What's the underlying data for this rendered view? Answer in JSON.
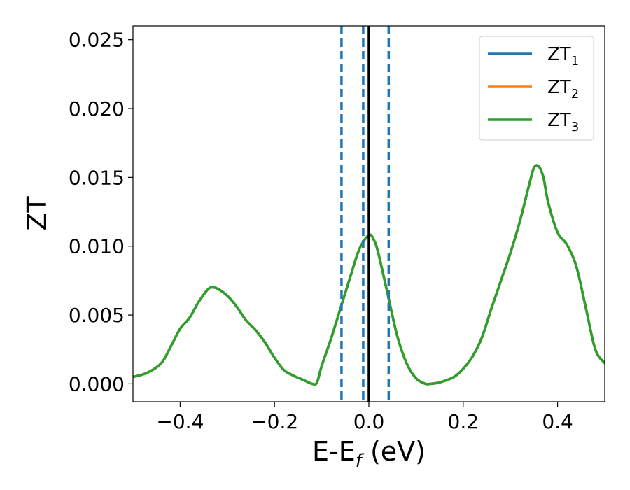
{
  "chart_data": {
    "type": "line",
    "title": "",
    "xlabel": "E-E",
    "xlabel_sub": "f",
    "xlabel_unit": " (eV)",
    "ylabel": "ZT",
    "xlim": [
      -0.5,
      0.5
    ],
    "ylim": [
      -0.0013,
      0.026
    ],
    "x_ticks": [
      -0.4,
      -0.2,
      0.0,
      0.2,
      0.4
    ],
    "x_tick_labels": [
      "−0.4",
      "−0.2",
      "0.0",
      "0.2",
      "0.4"
    ],
    "y_ticks": [
      0.0,
      0.005,
      0.01,
      0.015,
      0.02,
      0.025
    ],
    "y_tick_labels": [
      "0.000",
      "0.005",
      "0.010",
      "0.015",
      "0.020",
      "0.025"
    ],
    "grid": false,
    "legend": {
      "placement": "top-right",
      "entries": [
        {
          "base": "ZT",
          "sub": "1",
          "color": "#1f77b4"
        },
        {
          "base": "ZT",
          "sub": "2",
          "color": "#ff7f0e"
        },
        {
          "base": "ZT",
          "sub": "3",
          "color": "#2ca02c"
        }
      ]
    },
    "x": [
      -0.5,
      -0.47,
      -0.44,
      -0.42,
      -0.4,
      -0.38,
      -0.36,
      -0.34,
      -0.33,
      -0.32,
      -0.3,
      -0.28,
      -0.26,
      -0.24,
      -0.22,
      -0.2,
      -0.18,
      -0.16,
      -0.14,
      -0.12,
      -0.11,
      -0.1,
      -0.08,
      -0.06,
      -0.04,
      -0.02,
      0.0,
      0.01,
      0.02,
      0.04,
      0.06,
      0.08,
      0.1,
      0.12,
      0.13,
      0.15,
      0.18,
      0.2,
      0.22,
      0.24,
      0.26,
      0.28,
      0.3,
      0.32,
      0.34,
      0.35,
      0.36,
      0.37,
      0.38,
      0.4,
      0.42,
      0.44,
      0.46,
      0.48,
      0.5
    ],
    "series": [
      {
        "name": "ZT1",
        "color": "#1f77b4",
        "values": [
          0.0005,
          0.0008,
          0.0015,
          0.0027,
          0.004,
          0.0048,
          0.006,
          0.0069,
          0.007,
          0.0069,
          0.0064,
          0.0056,
          0.0046,
          0.0039,
          0.003,
          0.0019,
          0.001,
          0.0006,
          0.0003,
          0.0,
          0.0001,
          0.0013,
          0.0033,
          0.0055,
          0.0077,
          0.0098,
          0.0108,
          0.0105,
          0.0095,
          0.0065,
          0.0035,
          0.0015,
          0.0004,
          0.0,
          0.0,
          0.0001,
          0.0005,
          0.0011,
          0.002,
          0.0034,
          0.0055,
          0.0075,
          0.0095,
          0.0118,
          0.0145,
          0.0157,
          0.0158,
          0.015,
          0.0132,
          0.011,
          0.0101,
          0.0085,
          0.0055,
          0.0025,
          0.0015
        ]
      },
      {
        "name": "ZT2",
        "color": "#ff7f0e",
        "values": [
          0.0005,
          0.0008,
          0.0015,
          0.0027,
          0.004,
          0.0048,
          0.006,
          0.0069,
          0.007,
          0.0069,
          0.0064,
          0.0056,
          0.0046,
          0.0039,
          0.003,
          0.0019,
          0.001,
          0.0006,
          0.0003,
          0.0,
          0.0001,
          0.0013,
          0.0033,
          0.0055,
          0.0077,
          0.0098,
          0.0108,
          0.0105,
          0.0095,
          0.0065,
          0.0035,
          0.0015,
          0.0004,
          0.0,
          0.0,
          0.0001,
          0.0005,
          0.0011,
          0.002,
          0.0034,
          0.0055,
          0.0075,
          0.0095,
          0.0118,
          0.0145,
          0.0157,
          0.0158,
          0.015,
          0.0132,
          0.011,
          0.0101,
          0.0085,
          0.0055,
          0.0025,
          0.0015
        ]
      },
      {
        "name": "ZT3",
        "color": "#2ca02c",
        "values": [
          0.0005,
          0.0008,
          0.0015,
          0.0027,
          0.004,
          0.0048,
          0.006,
          0.0069,
          0.007,
          0.0069,
          0.0064,
          0.0056,
          0.0046,
          0.0039,
          0.003,
          0.0019,
          0.001,
          0.0006,
          0.0003,
          0.0,
          0.0001,
          0.0013,
          0.0033,
          0.0055,
          0.0077,
          0.0098,
          0.0108,
          0.0105,
          0.0095,
          0.0065,
          0.0035,
          0.0015,
          0.0004,
          0.0,
          0.0,
          0.0001,
          0.0005,
          0.0011,
          0.002,
          0.0034,
          0.0055,
          0.0075,
          0.0095,
          0.0118,
          0.0145,
          0.0157,
          0.0158,
          0.015,
          0.0132,
          0.011,
          0.0101,
          0.0085,
          0.0055,
          0.0025,
          0.0015
        ]
      }
    ],
    "vlines": [
      {
        "x": -0.058,
        "style": "dashed",
        "color": "#1f77b4"
      },
      {
        "x": -0.012,
        "style": "dashed",
        "color": "#1f77b4"
      },
      {
        "x": 0.042,
        "style": "dashed",
        "color": "#1f77b4"
      },
      {
        "x": 0.0,
        "style": "solid",
        "color": "#000000"
      }
    ]
  }
}
